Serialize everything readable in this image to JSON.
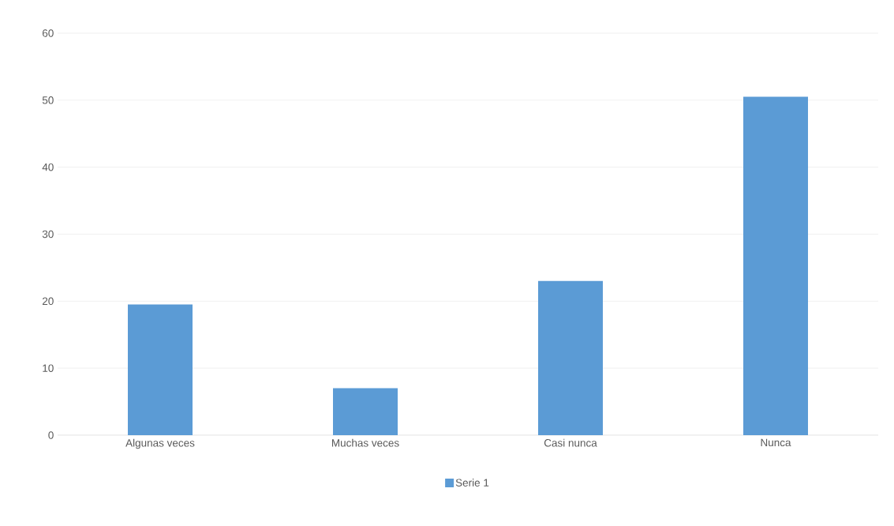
{
  "chart_data": {
    "type": "bar",
    "categories": [
      "Algunas veces",
      "Muchas veces",
      "Casi nunca",
      "Nunca"
    ],
    "series": [
      {
        "name": "Serie 1",
        "color": "#5b9bd5",
        "values": [
          19.5,
          7,
          23,
          50.5
        ]
      }
    ],
    "ylim": [
      0,
      60
    ],
    "yticks": [
      0,
      10,
      20,
      30,
      40,
      50,
      60
    ],
    "grid": "y",
    "legend": "bottom"
  }
}
